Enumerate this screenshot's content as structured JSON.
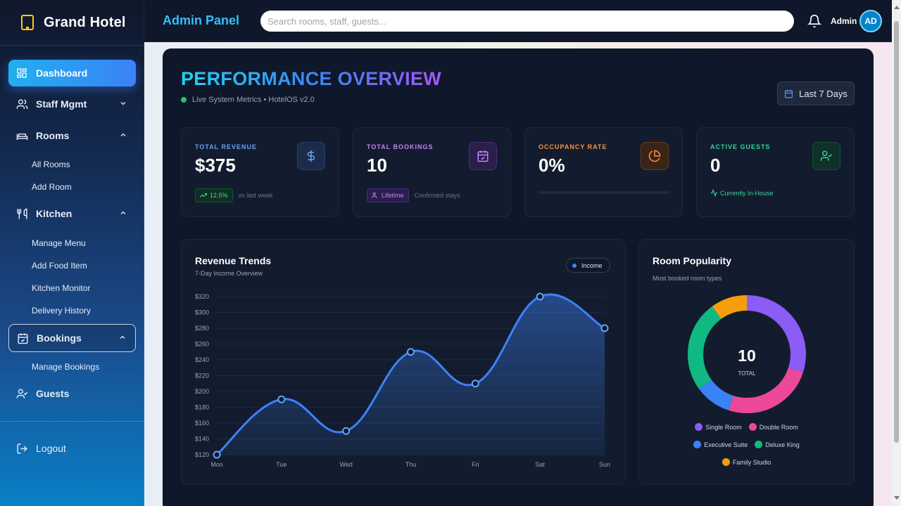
{
  "sidebar": {
    "brand": "Grand Hotel",
    "items": [
      {
        "label": "Dashboard"
      },
      {
        "label": "Staff Mgmt"
      },
      {
        "label": "Rooms",
        "sub": [
          "All Rooms",
          "Add Room"
        ]
      },
      {
        "label": "Kitchen",
        "sub": [
          "Manage Menu",
          "Add Food Item",
          "Kitchen Monitor",
          "Delivery History"
        ]
      },
      {
        "label": "Bookings",
        "sub": [
          "Manage Bookings"
        ]
      },
      {
        "label": "Guests"
      }
    ],
    "logout": "Logout"
  },
  "topbar": {
    "title": "Admin Panel",
    "search_placeholder": "Search rooms, staff, guests...",
    "user_name": "Admin",
    "avatar_initials": "AD"
  },
  "overview": {
    "title": "PERFORMANCE OVERVIEW",
    "subtitle": "Live System Metrics • HotelOS v2.0",
    "range": "Last 7 Days"
  },
  "stats": {
    "revenue": {
      "label": "TOTAL REVENUE",
      "value": "$375",
      "badge": "12.5%",
      "note": "vs last week",
      "color": "#60a5fa"
    },
    "bookings": {
      "label": "TOTAL BOOKINGS",
      "value": "10",
      "badge": "Lifetime",
      "note": "Confirmed stays",
      "color": "#c084fc"
    },
    "occupancy": {
      "label": "OCCUPANCY RATE",
      "value": "0%",
      "progress": 0,
      "color": "#fb923c"
    },
    "guests": {
      "label": "ACTIVE GUESTS",
      "value": "0",
      "note": "Currently In-House",
      "color": "#34d399"
    }
  },
  "revenue_chart": {
    "title": "Revenue Trends",
    "subtitle": "7-Day Income Overview",
    "legend": "Income"
  },
  "popularity_chart": {
    "title": "Room Popularity",
    "subtitle": "Most booked room types",
    "center_value": "10",
    "center_label": "TOTAL"
  },
  "chart_data": [
    {
      "type": "area",
      "title": "Revenue Trends",
      "subtitle": "7-Day Income Overview",
      "x": [
        "Mon",
        "Tue",
        "Wed",
        "Thu",
        "Fri",
        "Sat",
        "Sun"
      ],
      "series": [
        {
          "name": "Income",
          "values": [
            120,
            190,
            150,
            250,
            210,
            320,
            280
          ],
          "color": "#3b82f6"
        }
      ],
      "ylim": [
        120,
        320
      ],
      "yticks": [
        "$320",
        "$300",
        "$280",
        "$260",
        "$240",
        "$220",
        "$200",
        "$180",
        "$160",
        "$140",
        "$120"
      ],
      "grid": true,
      "legend": "top-right"
    },
    {
      "type": "pie",
      "title": "Room Popularity",
      "subtitle": "Most booked room types",
      "total": 10,
      "slices": [
        {
          "label": "Single Room",
          "value": 3,
          "color": "#8b5cf6"
        },
        {
          "label": "Double Room",
          "value": 2.5,
          "color": "#ec4899"
        },
        {
          "label": "Executive Suite",
          "value": 1,
          "color": "#3b82f6"
        },
        {
          "label": "Deluxe King",
          "value": 2.5,
          "color": "#10b981"
        },
        {
          "label": "Family Studio",
          "value": 1,
          "color": "#f59e0b"
        }
      ],
      "legend": "bottom"
    }
  ]
}
